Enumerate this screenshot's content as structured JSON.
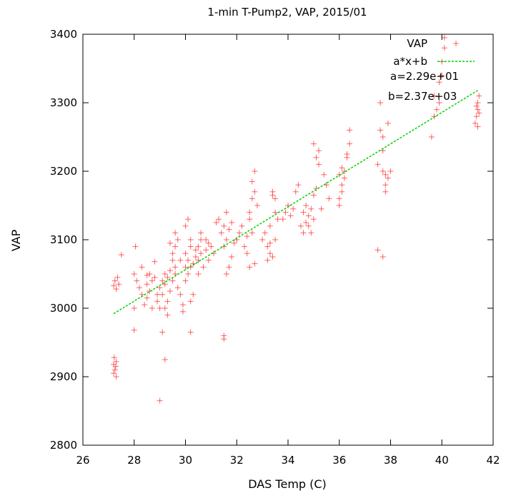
{
  "chart_data": {
    "type": "scatter",
    "title": "1-min T-Pump2, VAP, 2015/01",
    "xlabel": "DAS Temp (C)",
    "ylabel": "VAP",
    "xlim": [
      26,
      42
    ],
    "ylim": [
      2800,
      3400
    ],
    "xticks": [
      "26",
      "28",
      "30",
      "32",
      "34",
      "36",
      "38",
      "40",
      "42"
    ],
    "yticks": [
      "2800",
      "2900",
      "3000",
      "3100",
      "3200",
      "3300",
      "3400"
    ],
    "grid": false,
    "legend_position": "top-right",
    "series": [
      {
        "name": "VAP",
        "marker": "plus",
        "color": "#ff3030",
        "points": [
          [
            27.2,
            2918
          ],
          [
            27.25,
            2910
          ],
          [
            27.3,
            2922
          ],
          [
            27.2,
            2905
          ],
          [
            27.28,
            2915
          ],
          [
            27.22,
            2928
          ],
          [
            27.3,
            2900
          ],
          [
            27.2,
            3033
          ],
          [
            27.25,
            3040
          ],
          [
            27.3,
            3028
          ],
          [
            27.35,
            3045
          ],
          [
            27.4,
            3035
          ],
          [
            27.5,
            3078
          ],
          [
            28.0,
            3050
          ],
          [
            28.1,
            3040
          ],
          [
            28.0,
            3000
          ],
          [
            28.0,
            2968
          ],
          [
            28.05,
            3090
          ],
          [
            28.2,
            3030
          ],
          [
            28.3,
            3020
          ],
          [
            28.4,
            3005
          ],
          [
            28.5,
            3015
          ],
          [
            28.6,
            3025
          ],
          [
            28.5,
            3035
          ],
          [
            28.7,
            3040
          ],
          [
            28.6,
            3050
          ],
          [
            28.8,
            3045
          ],
          [
            28.7,
            3000
          ],
          [
            28.9,
            3010
          ],
          [
            28.9,
            3020
          ],
          [
            28.3,
            3060
          ],
          [
            28.5,
            3048
          ],
          [
            28.8,
            3068
          ],
          [
            29.0,
            3030
          ],
          [
            29.1,
            3040
          ],
          [
            29.2,
            3050
          ],
          [
            29.1,
            3020
          ],
          [
            29.2,
            3035
          ],
          [
            29.3,
            3045
          ],
          [
            29.2,
            3000
          ],
          [
            29.3,
            3010
          ],
          [
            29.4,
            3055
          ],
          [
            29.5,
            3040
          ],
          [
            29.4,
            3025
          ],
          [
            29.5,
            3070
          ],
          [
            29.6,
            3060
          ],
          [
            29.5,
            3080
          ],
          [
            29.6,
            3090
          ],
          [
            29.7,
            3100
          ],
          [
            29.6,
            3050
          ],
          [
            29.8,
            3070
          ],
          [
            29.7,
            3030
          ],
          [
            29.0,
            2865
          ],
          [
            29.2,
            2925
          ],
          [
            29.1,
            2965
          ],
          [
            29.0,
            3000
          ],
          [
            29.3,
            2990
          ],
          [
            29.4,
            3095
          ],
          [
            29.6,
            3110
          ],
          [
            29.8,
            3020
          ],
          [
            29.9,
            3005
          ],
          [
            29.9,
            2995
          ],
          [
            30.0,
            3060
          ],
          [
            30.0,
            3040
          ],
          [
            30.1,
            3050
          ],
          [
            30.1,
            3070
          ],
          [
            30.0,
            3080
          ],
          [
            30.2,
            3090
          ],
          [
            30.2,
            3100
          ],
          [
            30.0,
            3120
          ],
          [
            30.1,
            3130
          ],
          [
            30.2,
            3060
          ],
          [
            30.3,
            3065
          ],
          [
            30.2,
            3010
          ],
          [
            30.3,
            3020
          ],
          [
            30.2,
            2965
          ],
          [
            30.4,
            3075
          ],
          [
            30.4,
            3085
          ],
          [
            30.5,
            3070
          ],
          [
            30.5,
            3090
          ],
          [
            30.6,
            3100
          ],
          [
            30.6,
            3080
          ],
          [
            30.7,
            3060
          ],
          [
            30.6,
            3110
          ],
          [
            30.5,
            3050
          ],
          [
            30.8,
            3085
          ],
          [
            30.9,
            3095
          ],
          [
            30.9,
            3070
          ],
          [
            30.8,
            3100
          ],
          [
            31.0,
            3090
          ],
          [
            31.1,
            3080
          ],
          [
            31.2,
            3125
          ],
          [
            31.3,
            3130
          ],
          [
            31.4,
            3110
          ],
          [
            31.5,
            3120
          ],
          [
            31.5,
            3090
          ],
          [
            31.6,
            3100
          ],
          [
            31.6,
            3140
          ],
          [
            31.7,
            3115
          ],
          [
            31.8,
            3125
          ],
          [
            31.7,
            3060
          ],
          [
            31.6,
            3050
          ],
          [
            31.8,
            3075
          ],
          [
            31.5,
            2960
          ],
          [
            31.5,
            2955
          ],
          [
            31.9,
            3095
          ],
          [
            32.0,
            3100
          ],
          [
            32.1,
            3110
          ],
          [
            32.2,
            3120
          ],
          [
            32.3,
            3090
          ],
          [
            32.4,
            3080
          ],
          [
            32.5,
            3130
          ],
          [
            32.6,
            3110
          ],
          [
            32.4,
            3105
          ],
          [
            32.5,
            3140
          ],
          [
            32.6,
            3160
          ],
          [
            32.7,
            3170
          ],
          [
            32.6,
            3185
          ],
          [
            32.7,
            3200
          ],
          [
            32.8,
            3150
          ],
          [
            32.5,
            3060
          ],
          [
            32.7,
            3065
          ],
          [
            33.0,
            3100
          ],
          [
            33.1,
            3110
          ],
          [
            33.2,
            3090
          ],
          [
            33.3,
            3080
          ],
          [
            33.3,
            3120
          ],
          [
            33.4,
            3170
          ],
          [
            33.4,
            3165
          ],
          [
            33.5,
            3160
          ],
          [
            33.5,
            3100
          ],
          [
            33.6,
            3130
          ],
          [
            33.4,
            3075
          ],
          [
            33.3,
            3095
          ],
          [
            33.5,
            3140
          ],
          [
            33.2,
            3070
          ],
          [
            33.8,
            3130
          ],
          [
            33.9,
            3140
          ],
          [
            34.0,
            3150
          ],
          [
            34.1,
            3135
          ],
          [
            34.2,
            3145
          ],
          [
            34.3,
            3170
          ],
          [
            34.4,
            3180
          ],
          [
            34.5,
            3120
          ],
          [
            34.6,
            3110
          ],
          [
            34.7,
            3125
          ],
          [
            34.6,
            3140
          ],
          [
            34.7,
            3150
          ],
          [
            34.8,
            3135
          ],
          [
            34.9,
            3145
          ],
          [
            35.0,
            3130
          ],
          [
            35.0,
            3165
          ],
          [
            35.1,
            3175
          ],
          [
            35.1,
            3220
          ],
          [
            35.2,
            3230
          ],
          [
            35.0,
            3240
          ],
          [
            35.2,
            3210
          ],
          [
            35.4,
            3195
          ],
          [
            35.5,
            3180
          ],
          [
            35.6,
            3160
          ],
          [
            35.3,
            3145
          ],
          [
            34.8,
            3120
          ],
          [
            34.9,
            3110
          ],
          [
            36.0,
            3160
          ],
          [
            36.0,
            3150
          ],
          [
            36.1,
            3170
          ],
          [
            36.1,
            3180
          ],
          [
            36.2,
            3190
          ],
          [
            36.2,
            3200
          ],
          [
            36.3,
            3220
          ],
          [
            36.3,
            3225
          ],
          [
            36.4,
            3240
          ],
          [
            36.4,
            3260
          ],
          [
            36.0,
            3195
          ],
          [
            36.1,
            3205
          ],
          [
            37.5,
            3085
          ],
          [
            37.5,
            3210
          ],
          [
            37.6,
            3260
          ],
          [
            37.6,
            3300
          ],
          [
            37.7,
            3230
          ],
          [
            37.7,
            3250
          ],
          [
            37.7,
            3200
          ],
          [
            37.8,
            3180
          ],
          [
            37.8,
            3195
          ],
          [
            37.8,
            3170
          ],
          [
            37.9,
            3190
          ],
          [
            37.7,
            3075
          ],
          [
            37.9,
            3270
          ],
          [
            38.0,
            3200
          ],
          [
            39.6,
            3250
          ],
          [
            39.7,
            3280
          ],
          [
            39.7,
            3310
          ],
          [
            39.8,
            3290
          ],
          [
            39.9,
            3300
          ],
          [
            39.9,
            3330
          ],
          [
            40.0,
            3340
          ],
          [
            40.0,
            3360
          ],
          [
            40.1,
            3380
          ],
          [
            40.1,
            3395
          ],
          [
            41.3,
            3270
          ],
          [
            41.35,
            3280
          ],
          [
            41.4,
            3290
          ],
          [
            41.4,
            3300
          ],
          [
            41.45,
            3310
          ],
          [
            41.4,
            3265
          ],
          [
            41.45,
            3285
          ],
          [
            41.35,
            3295
          ]
        ]
      },
      {
        "name": "a*x+b",
        "type": "line",
        "color": "#00d000",
        "x": [
          27.2,
          41.4
        ],
        "y": [
          2992,
          3318
        ]
      }
    ],
    "annotations": [
      "a=2.29e+01",
      "b=2.37e+03"
    ]
  }
}
